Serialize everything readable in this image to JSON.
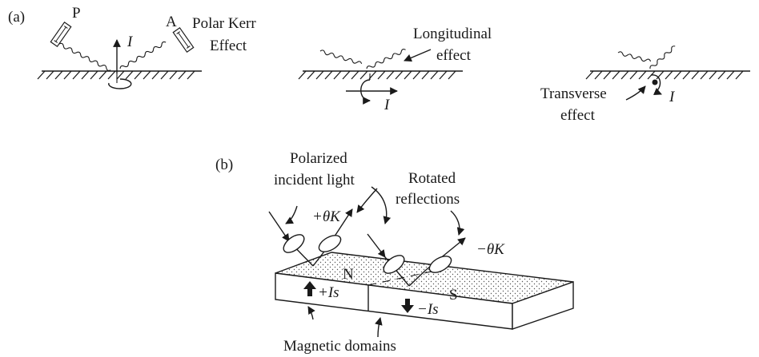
{
  "panel_a": {
    "label": "(a)",
    "polar": {
      "polarizer_label": "P",
      "analyzer_label": "A",
      "current_label": "I",
      "effect_line1": "Polar Kerr",
      "effect_line2": "Effect"
    },
    "longitudinal": {
      "effect_line1": "Longitudinal",
      "effect_line2": "effect",
      "current_label": "I"
    },
    "transverse": {
      "effect_line1": "Transverse",
      "effect_line2": "effect",
      "current_label": "I"
    }
  },
  "panel_b": {
    "label": "(b)",
    "incident_line1": "Polarized",
    "incident_line2": "incident light",
    "rotated_line1": "Rotated",
    "rotated_line2": "reflections",
    "theta_plus": "+θK",
    "theta_minus": "−θK",
    "domain_n": "N",
    "domain_s": "S",
    "current_plus": "+Is",
    "current_minus": "−Is",
    "caption": "Magnetic domains"
  },
  "colors": {
    "ink": "#1a1a1a",
    "background": "#ffffff"
  }
}
